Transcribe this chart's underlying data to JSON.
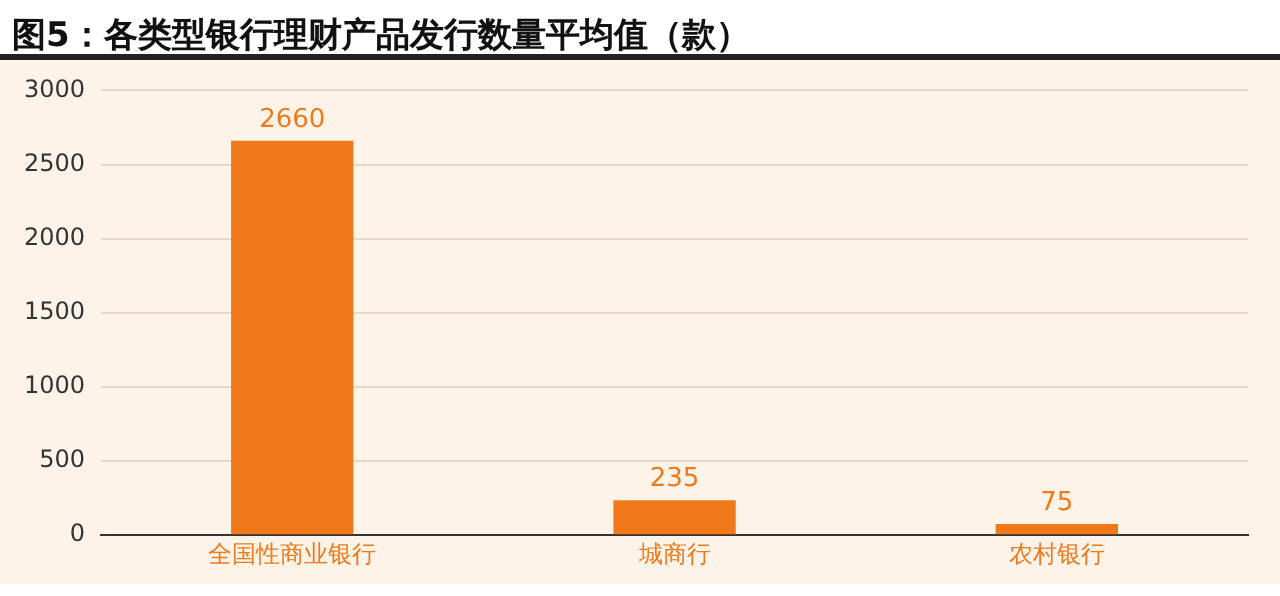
{
  "chart_data": {
    "type": "bar",
    "title": "图5：各类型银行理财产品发行数量平均值（款）",
    "categories": [
      "全国性商业银行",
      "城商行",
      "农村银行"
    ],
    "values": [
      2660,
      235,
      75
    ],
    "color": "#f07a1a",
    "ylim": [
      0,
      3000
    ],
    "yticks": [
      0,
      500,
      1000,
      1500,
      2000,
      2500,
      3000
    ],
    "grid": "y",
    "data_labels": true
  }
}
